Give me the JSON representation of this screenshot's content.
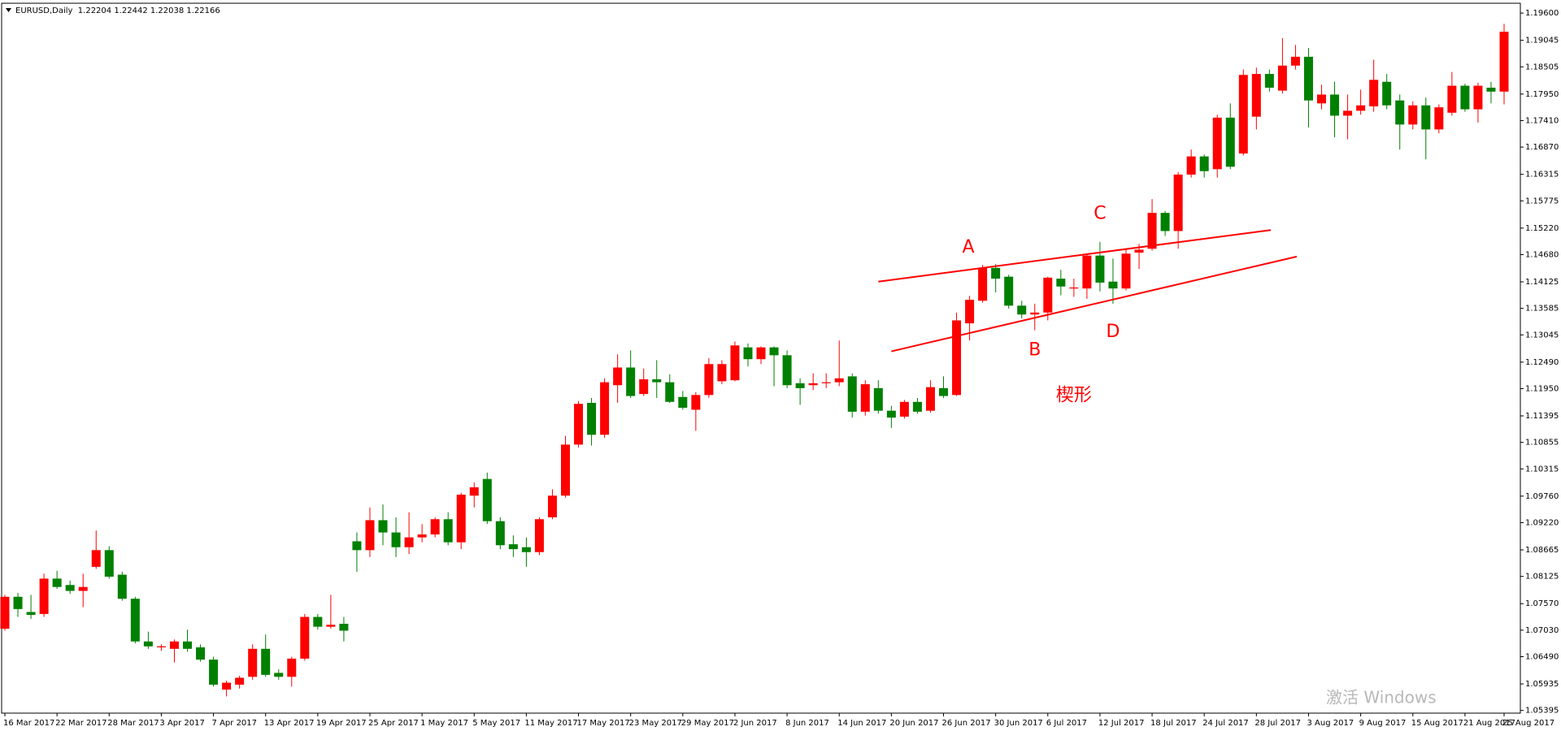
{
  "chart_data": {
    "type": "candlestick",
    "title": "EURUSD,Daily  1.22204 1.22442 1.22038 1.22166",
    "up_color": "#ff0000",
    "down_color": "#008000",
    "categories": [
      "16 Mar 2017",
      null,
      null,
      null,
      "22 Mar 2017",
      null,
      null,
      null,
      "28 Mar 2017",
      null,
      null,
      null,
      "3 Apr 2017",
      null,
      null,
      null,
      "7 Apr 2017",
      null,
      null,
      null,
      "13 Apr 2017",
      null,
      null,
      null,
      "19 Apr 2017",
      null,
      null,
      null,
      "25 Apr 2017",
      null,
      null,
      null,
      "1 May 2017",
      null,
      null,
      null,
      "5 May 2017",
      null,
      null,
      null,
      "11 May 2017",
      null,
      null,
      null,
      "17 May 2017",
      null,
      null,
      null,
      "23 May 2017",
      null,
      null,
      null,
      "29 May 2017",
      null,
      null,
      null,
      "2 Jun 2017",
      null,
      null,
      null,
      "8 Jun 2017",
      null,
      null,
      null,
      "14 Jun 2017",
      null,
      null,
      null,
      "20 Jun 2017",
      null,
      null,
      null,
      "26 Jun 2017",
      null,
      null,
      null,
      "30 Jun 2017",
      null,
      null,
      null,
      "6 Jul 2017",
      null,
      null,
      null,
      "12 Jul 2017",
      null,
      null,
      null,
      "18 Jul 2017",
      null,
      null,
      null,
      "24 Jul 2017",
      null,
      null,
      null,
      "28 Jul 2017",
      null,
      null,
      null,
      "3 Aug 2017",
      null,
      null,
      null,
      "9 Aug 2017",
      null,
      null,
      null,
      "15 Aug 2017",
      null,
      null,
      null,
      "21 Aug 2017",
      null,
      null,
      "25 Aug 2017"
    ],
    "open": [
      1.0706,
      1.0771,
      1.074,
      1.0736,
      1.0808,
      1.0795,
      1.0783,
      1.0832,
      1.0866,
      1.0816,
      1.0767,
      1.068,
      1.0668,
      1.0665,
      1.068,
      1.0668,
      1.0643,
      1.0582,
      1.0592,
      1.0608,
      1.0665,
      1.0616,
      1.0608,
      1.0645,
      1.073,
      1.071,
      1.0716,
      1.0884,
      1.0866,
      1.0927,
      1.0902,
      1.0872,
      1.0892,
      1.0898,
      1.0929,
      1.0882,
      1.0977,
      1.1011,
      1.0925,
      1.0878,
      1.0872,
      1.0862,
      1.0933,
      1.0977,
      1.1081,
      1.1166,
      1.1101,
      1.1202,
      1.1238,
      1.1184,
      1.1214,
      1.1208,
      1.1178,
      1.1152,
      1.1182,
      1.121,
      1.1212,
      1.1279,
      1.1255,
      1.1279,
      1.1263,
      1.1206,
      1.1202,
      1.1206,
      1.1208,
      1.122,
      1.1148,
      1.1196,
      1.115,
      1.1138,
      1.1168,
      1.115,
      1.1196,
      1.1182,
      1.1328,
      1.1374,
      1.1441,
      1.1423,
      1.1364,
      1.1346,
      1.135,
      1.1419,
      1.1399,
      1.1399,
      1.1466,
      1.1413,
      1.1399,
      1.1472,
      1.148,
      1.1553,
      1.1516,
      1.1631,
      1.1668,
      1.1642,
      1.1747,
      1.1674,
      1.1749,
      1.1836,
      1.1802,
      1.1853,
      1.1871,
      1.1776,
      1.1794,
      1.1751,
      1.1761,
      1.177,
      1.182,
      1.1782,
      1.1733,
      1.1772,
      1.1723,
      1.1757,
      1.1812,
      1.1764,
      1.1808,
      1.18
    ],
    "high": [
      1.0775,
      1.0779,
      1.0775,
      1.0818,
      1.0824,
      1.0804,
      1.0818,
      1.0906,
      1.0874,
      1.0822,
      1.0771,
      1.07,
      1.0674,
      1.0684,
      1.0704,
      1.0674,
      1.0649,
      1.06,
      1.061,
      1.0674,
      1.0694,
      1.0623,
      1.0649,
      1.0736,
      1.0736,
      1.0775,
      1.073,
      1.0902,
      1.0953,
      1.0959,
      1.0933,
      1.0943,
      1.0919,
      1.0933,
      1.0943,
      1.0983,
      1.1004,
      1.1024,
      1.0933,
      1.0896,
      1.0892,
      1.0933,
      1.099,
      1.1099,
      1.117,
      1.1176,
      1.1216,
      1.1265,
      1.1273,
      1.1236,
      1.1253,
      1.1224,
      1.119,
      1.1188,
      1.1257,
      1.1253,
      1.1291,
      1.1287,
      1.1281,
      1.1281,
      1.1273,
      1.1216,
      1.1226,
      1.1226,
      1.1293,
      1.1226,
      1.1212,
      1.1212,
      1.116,
      1.1172,
      1.1176,
      1.1212,
      1.122,
      1.135,
      1.1384,
      1.1447,
      1.1449,
      1.1427,
      1.1374,
      1.1368,
      1.1423,
      1.1437,
      1.1419,
      1.147,
      1.1494,
      1.146,
      1.148,
      1.149,
      1.1581,
      1.1557,
      1.1636,
      1.1682,
      1.1672,
      1.1753,
      1.1776,
      1.1845,
      1.1849,
      1.1845,
      1.1909,
      1.1895,
      1.1889,
      1.1814,
      1.182,
      1.1794,
      1.1804,
      1.1865,
      1.1836,
      1.1794,
      1.178,
      1.1788,
      1.1774,
      1.184,
      1.1816,
      1.1818,
      1.182,
      1.1938
    ],
    "low": [
      1.0702,
      1.073,
      1.0726,
      1.073,
      1.0787,
      1.0777,
      1.075,
      1.0828,
      1.0808,
      1.0763,
      1.0676,
      1.0665,
      1.0661,
      1.0637,
      1.0659,
      1.0639,
      1.0588,
      1.0568,
      1.0584,
      1.0602,
      1.0608,
      1.0602,
      1.0588,
      1.0641,
      1.0704,
      1.0706,
      1.068,
      1.0822,
      1.0852,
      1.0876,
      1.0852,
      1.0858,
      1.0882,
      1.0892,
      1.0876,
      1.0868,
      1.0953,
      1.0919,
      1.0868,
      1.0852,
      1.0832,
      1.0856,
      1.0929,
      1.0973,
      1.1075,
      1.1079,
      1.1095,
      1.1166,
      1.1176,
      1.118,
      1.1176,
      1.1166,
      1.1152,
      1.1109,
      1.1176,
      1.1204,
      1.121,
      1.124,
      1.1245,
      1.12,
      1.1196,
      1.1162,
      1.1192,
      1.1196,
      1.12,
      1.1136,
      1.114,
      1.1144,
      1.1115,
      1.1134,
      1.1144,
      1.1146,
      1.1176,
      1.118,
      1.1293,
      1.137,
      1.1391,
      1.1358,
      1.1338,
      1.1314,
      1.1334,
      1.1385,
      1.1382,
      1.1378,
      1.1393,
      1.1368,
      1.1395,
      1.1439,
      1.1476,
      1.1506,
      1.148,
      1.1625,
      1.1625,
      1.1625,
      1.1642,
      1.167,
      1.1723,
      1.18,
      1.1796,
      1.1845,
      1.1727,
      1.1764,
      1.1707,
      1.1703,
      1.1753,
      1.1759,
      1.1764,
      1.1682,
      1.1723,
      1.1662,
      1.1715,
      1.1751,
      1.1759,
      1.1737,
      1.1776,
      1.1774
    ],
    "close": [
      1.0771,
      1.0746,
      1.0734,
      1.0808,
      1.0791,
      1.0783,
      1.0791,
      1.0866,
      1.0812,
      1.0767,
      1.068,
      1.067,
      1.067,
      1.068,
      1.0665,
      1.0643,
      1.0592,
      1.0596,
      1.0606,
      1.0665,
      1.0612,
      1.0608,
      1.0645,
      1.073,
      1.071,
      1.0714,
      1.0702,
      1.0866,
      1.0927,
      1.0902,
      1.0872,
      1.0892,
      1.0898,
      1.0929,
      1.0882,
      1.0979,
      1.0994,
      1.0925,
      1.0876,
      1.0868,
      1.0862,
      1.0929,
      1.0977,
      1.1081,
      1.1164,
      1.1101,
      1.1208,
      1.1238,
      1.118,
      1.1214,
      1.1208,
      1.1168,
      1.1156,
      1.1182,
      1.1245,
      1.1245,
      1.1283,
      1.1255,
      1.1279,
      1.1263,
      1.1202,
      1.1196,
      1.1206,
      1.1208,
      1.1216,
      1.1148,
      1.1204,
      1.115,
      1.1136,
      1.1168,
      1.1148,
      1.1198,
      1.118,
      1.1334,
      1.1376,
      1.1441,
      1.1419,
      1.1364,
      1.1346,
      1.135,
      1.1421,
      1.1403,
      1.1401,
      1.1466,
      1.1411,
      1.1399,
      1.147,
      1.1478,
      1.1553,
      1.1516,
      1.1631,
      1.1668,
      1.1638,
      1.1747,
      1.1647,
      1.1834,
      1.1836,
      1.1808,
      1.1853,
      1.1871,
      1.1782,
      1.1794,
      1.1751,
      1.1761,
      1.1772,
      1.1824,
      1.1772,
      1.1733,
      1.1772,
      1.1723,
      1.1768,
      1.1812,
      1.1764,
      1.1812,
      1.18,
      1.1922
    ],
    "ylim": [
      1.0534,
      1.198
    ],
    "yticks": [
      {
        "value": 1.196,
        "label": "1.19600"
      },
      1.19045,
      1.18505,
      {
        "value": 1.1795,
        "label": "1.17950"
      },
      {
        "value": 1.1741,
        "label": "1.17410"
      },
      {
        "value": 1.1687,
        "label": "1.16870"
      },
      1.16315,
      1.15775,
      {
        "value": 1.1522,
        "label": "1.15220"
      },
      {
        "value": 1.1468,
        "label": "1.14680"
      },
      1.14125,
      1.13585,
      1.13045,
      {
        "value": 1.1249,
        "label": "1.12490"
      },
      {
        "value": 1.1195,
        "label": "1.11950"
      },
      1.11395,
      1.10855,
      1.10315,
      {
        "value": 1.0976,
        "label": "1.09760"
      },
      {
        "value": 1.0922,
        "label": "1.09220"
      },
      1.08665,
      1.08125,
      {
        "value": 1.0757,
        "label": "1.07570"
      },
      {
        "value": 1.0703,
        "label": "1.07030"
      },
      {
        "value": 1.0649,
        "label": "1.06490"
      },
      1.05935,
      1.05395
    ],
    "grid": false,
    "trendlines": [
      {
        "color": "#ff0000",
        "x": [
          67.0,
          97.1
        ],
        "y": [
          1.1413,
          1.1518
        ]
      },
      {
        "color": "#ff0000",
        "x": [
          68.0,
          99.1
        ],
        "y": [
          1.1271,
          1.1464
        ]
      }
    ],
    "annotations": [
      {
        "text": "A",
        "x": 73.9,
        "y": 1.1482,
        "color": "#ff0000"
      },
      {
        "text": "B",
        "x": 79.0,
        "y": 1.1273,
        "color": "#ff0000"
      },
      {
        "text": "C",
        "x": 84.0,
        "y": 1.1551,
        "color": "#ff0000"
      },
      {
        "text": "D",
        "x": 85.0,
        "y": 1.131,
        "color": "#ff0000"
      },
      {
        "text": "楔形",
        "x": 82.0,
        "y": 1.118,
        "color": "#ff0000"
      }
    ]
  },
  "overlay": {
    "watermark": "激活 Windows"
  }
}
